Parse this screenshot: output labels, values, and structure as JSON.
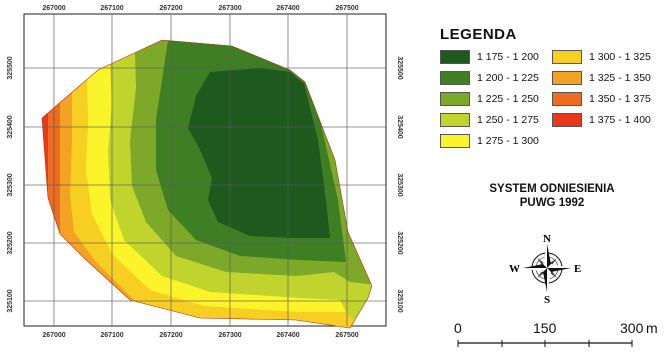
{
  "map": {
    "x_coords_top": [
      "267000",
      "267100",
      "267200",
      "267300",
      "267400",
      "267500"
    ],
    "x_coords_bottom": [
      "267000",
      "267100",
      "267200",
      "267300",
      "267400",
      "267500"
    ],
    "y_coords_left": [
      "325500",
      "325400",
      "325300",
      "325200",
      "325100"
    ],
    "y_coords_right": [
      "325500",
      "325400",
      "325300",
      "325200",
      "325100"
    ]
  },
  "legend": {
    "title": "LEGENDA",
    "items": [
      {
        "label": "1 175 - 1 200",
        "color": "#1e5a1e"
      },
      {
        "label": "1 300 - 1 325",
        "color": "#f7cf22"
      },
      {
        "label": "1 200 - 1 225",
        "color": "#3f7f24"
      },
      {
        "label": "1 325 - 1 350",
        "color": "#f4a224"
      },
      {
        "label": "1 225 - 1 250",
        "color": "#7ea82a"
      },
      {
        "label": "1 350 - 1 375",
        "color": "#ee6b1f"
      },
      {
        "label": "1 250 - 1 275",
        "color": "#c1d42d"
      },
      {
        "label": "1 375 - 1 400",
        "color": "#e83a1b"
      },
      {
        "label": "1 275 - 1 300",
        "color": "#fcf42a"
      }
    ]
  },
  "reference_system": {
    "line1": "SYSTEM ODNIESIENIA",
    "line2": "PUWG 1992"
  },
  "compass": {
    "n": "N",
    "s": "S",
    "e": "E",
    "w": "W"
  },
  "scale_bar": {
    "labels": [
      "0",
      "150",
      "300"
    ],
    "unit": "m"
  }
}
